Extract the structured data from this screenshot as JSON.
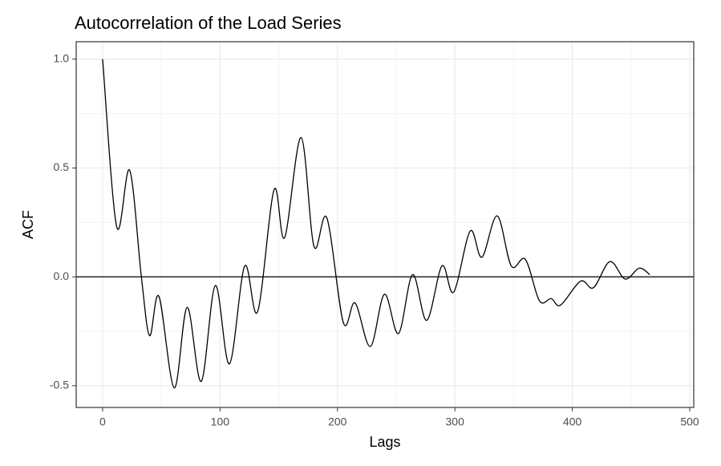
{
  "chart_data": {
    "type": "line",
    "title": "Autocorrelation of the Load Series",
    "xlabel": "Lags",
    "ylabel": "ACF",
    "x": [
      0,
      12,
      23,
      33,
      40,
      48,
      61,
      72,
      84,
      96,
      108,
      121,
      132,
      146,
      155,
      169,
      180,
      191,
      205,
      215,
      228,
      240,
      252,
      264,
      276,
      289,
      299,
      313,
      323,
      336,
      348,
      360,
      372,
      382,
      390,
      407,
      418,
      432,
      445,
      457,
      466
    ],
    "series": [
      {
        "color": "#000000",
        "values": [
          1.0,
          0.23,
          0.49,
          0.0,
          -0.27,
          -0.09,
          -0.51,
          -0.14,
          -0.48,
          -0.04,
          -0.4,
          0.05,
          -0.16,
          0.4,
          0.18,
          0.64,
          0.14,
          0.27,
          -0.21,
          -0.12,
          -0.32,
          -0.08,
          -0.26,
          0.01,
          -0.2,
          0.05,
          -0.07,
          0.21,
          0.09,
          0.28,
          0.05,
          0.08,
          -0.11,
          -0.1,
          -0.13,
          -0.02,
          -0.05,
          0.07,
          -0.01,
          0.04,
          0.01
        ]
      }
    ],
    "xlim": [
      -22.5,
      503.4
    ],
    "ylim": [
      -0.6,
      1.08
    ],
    "xticks": [
      0,
      100,
      200,
      300,
      400,
      500
    ],
    "yticks": [
      -0.5,
      {
        "value": 0,
        "label": "0.0"
      },
      0.5,
      {
        "value": 1,
        "label": "1.0"
      }
    ],
    "hline": 0,
    "grid": true
  }
}
